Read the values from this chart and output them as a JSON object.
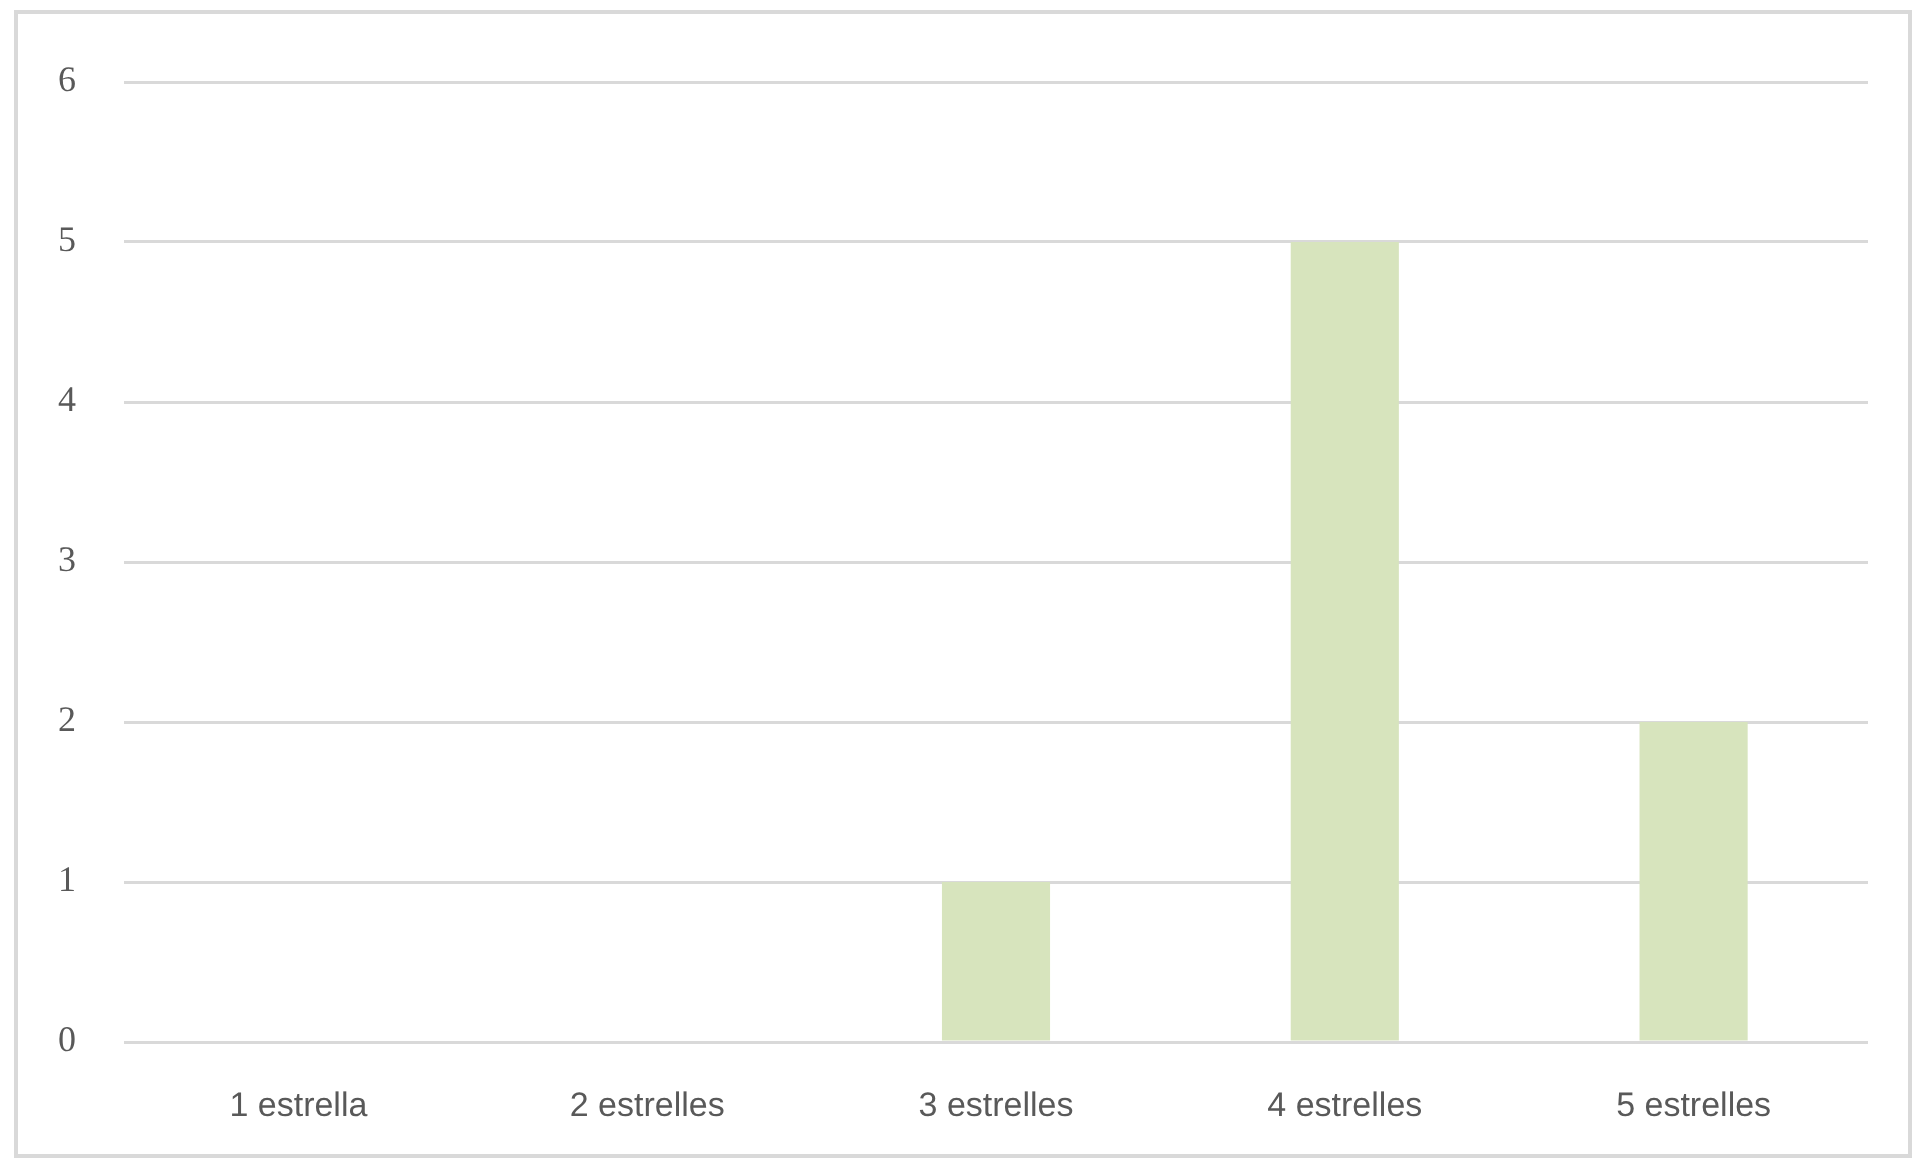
{
  "chart_data": {
    "type": "bar",
    "categories": [
      "1 estrella",
      "2 estrelles",
      "3 estrelles",
      "4 estrelles",
      "5 estrelles"
    ],
    "values": [
      0,
      0,
      1,
      5,
      2
    ],
    "color": "#d7e4bd",
    "ylim": [
      0,
      6
    ],
    "yticks": [
      0,
      1,
      2,
      3,
      4,
      5,
      6
    ],
    "grid": "y"
  }
}
